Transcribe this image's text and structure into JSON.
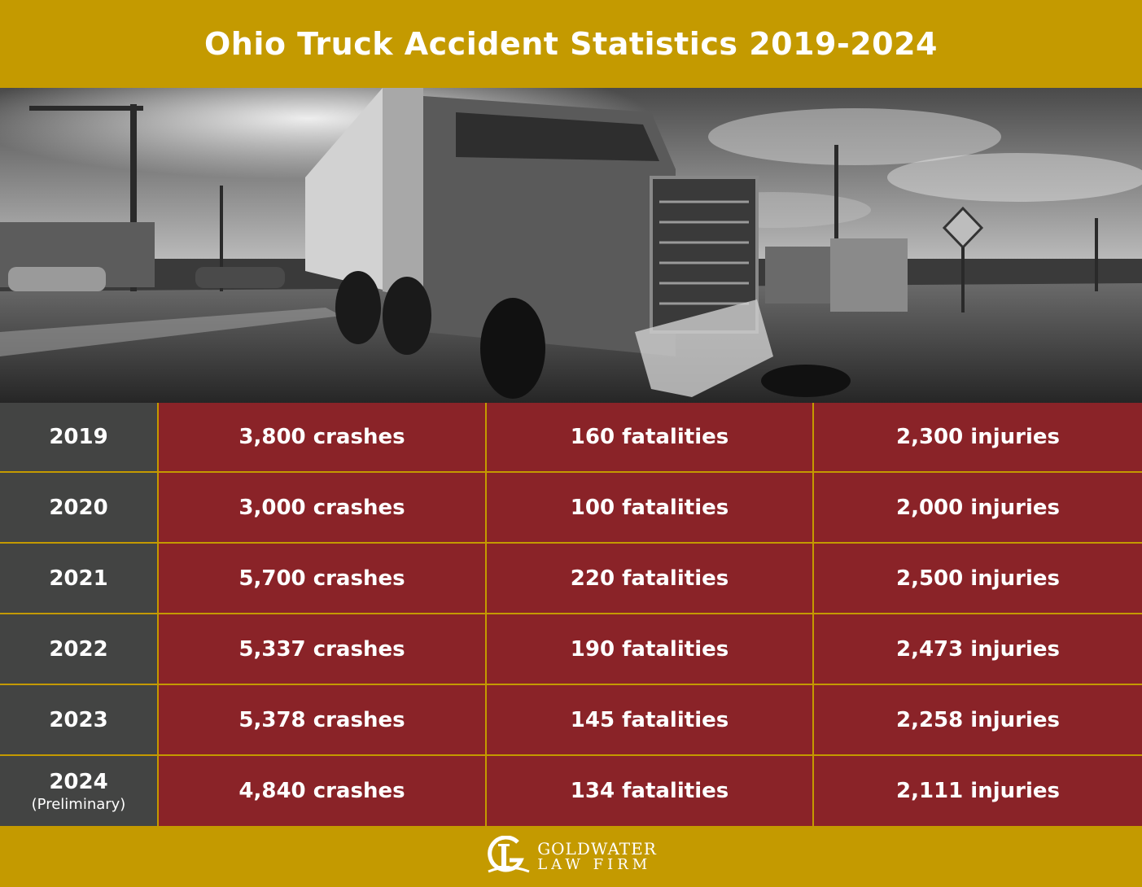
{
  "header": {
    "title": "Ohio Truck Accident Statistics 2019-2024"
  },
  "chart_data": {
    "type": "table",
    "title": "Ohio Truck Accident Statistics 2019-2024",
    "columns": [
      "year",
      "crashes",
      "fatalities",
      "injuries"
    ],
    "rows": [
      {
        "year": "2019",
        "note": "",
        "crashes": 3800,
        "fatalities": 160,
        "injuries": 2300,
        "crashes_label": "3,800 crashes",
        "fatalities_label": "160 fatalities",
        "injuries_label": "2,300 injuries"
      },
      {
        "year": "2020",
        "note": "",
        "crashes": 3000,
        "fatalities": 100,
        "injuries": 2000,
        "crashes_label": "3,000 crashes",
        "fatalities_label": "100 fatalities",
        "injuries_label": "2,000 injuries"
      },
      {
        "year": "2021",
        "note": "",
        "crashes": 5700,
        "fatalities": 220,
        "injuries": 2500,
        "crashes_label": "5,700 crashes",
        "fatalities_label": "220 fatalities",
        "injuries_label": "2,500 injuries"
      },
      {
        "year": "2022",
        "note": "",
        "crashes": 5337,
        "fatalities": 190,
        "injuries": 2473,
        "crashes_label": "5,337 crashes",
        "fatalities_label": "190 fatalities",
        "injuries_label": "2,473 injuries"
      },
      {
        "year": "2023",
        "note": "",
        "crashes": 5378,
        "fatalities": 145,
        "injuries": 2258,
        "crashes_label": "5,378 crashes",
        "fatalities_label": "145 fatalities",
        "injuries_label": "2,258 injuries"
      },
      {
        "year": "2024",
        "note": "(Preliminary)",
        "crashes": 4840,
        "fatalities": 134,
        "injuries": 2111,
        "crashes_label": "4,840 crashes",
        "fatalities_label": "134 fatalities",
        "injuries_label": "2,111 injuries"
      }
    ]
  },
  "footer": {
    "logo_line1": "GOLDWATER",
    "logo_line2": "LAW FIRM",
    "logo_icon": "column-g-logo-icon"
  },
  "colors": {
    "gold": "#c49a00",
    "year_cell": "#434443",
    "stat_cell": "#8a2328",
    "text": "#ffffff"
  },
  "photo": {
    "icon": "crashed-truck-photo"
  }
}
